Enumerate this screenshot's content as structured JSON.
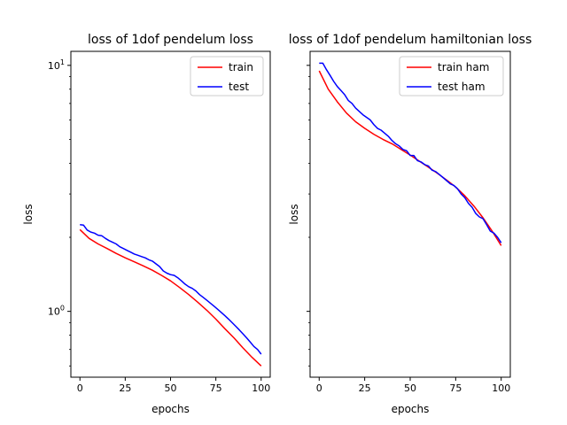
{
  "chart_data": [
    {
      "type": "line",
      "title": "loss of 1dof pendelum loss",
      "xlabel": "epochs",
      "ylabel": "loss",
      "xlim": [
        -5,
        105
      ],
      "ylim": [
        0.54,
        11.4
      ],
      "yscale": "log",
      "xticks": [
        0,
        25,
        50,
        75,
        100
      ],
      "xtick_labels": [
        "0",
        "25",
        "50",
        "75",
        "100"
      ],
      "yticks": [
        1,
        10
      ],
      "ytick_labels": [
        "10^0",
        "10^1"
      ],
      "legend": "top-right",
      "grid": false,
      "series": [
        {
          "name": "train",
          "color": "#ff0000",
          "x": [
            0,
            5,
            10,
            15,
            20,
            25,
            30,
            35,
            40,
            45,
            50,
            55,
            60,
            65,
            70,
            75,
            80,
            85,
            90,
            95,
            100
          ],
          "values": [
            2.15,
            1.98,
            1.88,
            1.8,
            1.72,
            1.65,
            1.59,
            1.53,
            1.47,
            1.4,
            1.33,
            1.25,
            1.17,
            1.09,
            1.01,
            0.93,
            0.85,
            0.78,
            0.71,
            0.65,
            0.6
          ]
        },
        {
          "name": "test",
          "color": "#0000ff",
          "x": [
            0,
            2,
            4,
            6,
            8,
            10,
            12,
            14,
            16,
            18,
            20,
            22,
            24,
            26,
            28,
            30,
            32,
            34,
            36,
            38,
            40,
            42,
            44,
            46,
            48,
            50,
            52,
            54,
            56,
            58,
            60,
            62,
            64,
            66,
            68,
            70,
            72,
            74,
            76,
            78,
            80,
            82,
            84,
            86,
            88,
            90,
            92,
            94,
            96,
            98,
            100
          ],
          "values": [
            2.25,
            2.24,
            2.14,
            2.1,
            2.08,
            2.04,
            2.03,
            1.98,
            1.94,
            1.91,
            1.88,
            1.83,
            1.8,
            1.77,
            1.74,
            1.71,
            1.69,
            1.67,
            1.65,
            1.62,
            1.6,
            1.56,
            1.52,
            1.46,
            1.43,
            1.41,
            1.4,
            1.37,
            1.33,
            1.29,
            1.26,
            1.24,
            1.21,
            1.17,
            1.14,
            1.11,
            1.08,
            1.05,
            1.02,
            0.99,
            0.96,
            0.93,
            0.9,
            0.87,
            0.84,
            0.81,
            0.78,
            0.75,
            0.72,
            0.7,
            0.67
          ]
        }
      ]
    },
    {
      "type": "line",
      "title": "loss of 1dof pendelum hamiltonian loss",
      "xlabel": "epochs",
      "ylabel": "loss",
      "xlim": [
        -5,
        105
      ],
      "ylim": [
        0.54,
        11.4
      ],
      "yscale": "log",
      "xticks": [
        0,
        25,
        50,
        75,
        100
      ],
      "xtick_labels": [
        "0",
        "25",
        "50",
        "75",
        "100"
      ],
      "legend": "top-right",
      "grid": false,
      "series": [
        {
          "name": "train ham",
          "color": "#ff0000",
          "x": [
            0,
            5,
            10,
            15,
            20,
            25,
            30,
            35,
            40,
            45,
            50,
            55,
            60,
            65,
            70,
            75,
            80,
            85,
            90,
            95,
            100
          ],
          "values": [
            9.5,
            8.0,
            7.1,
            6.4,
            5.9,
            5.55,
            5.25,
            5.0,
            4.8,
            4.55,
            4.32,
            4.08,
            3.86,
            3.64,
            3.42,
            3.2,
            2.95,
            2.68,
            2.4,
            2.12,
            1.85
          ]
        },
        {
          "name": "test ham",
          "color": "#0000ff",
          "x": [
            0,
            2,
            4,
            6,
            8,
            10,
            12,
            14,
            16,
            18,
            20,
            22,
            24,
            26,
            28,
            30,
            32,
            34,
            36,
            38,
            40,
            42,
            44,
            46,
            48,
            50,
            52,
            54,
            56,
            58,
            60,
            62,
            64,
            66,
            68,
            70,
            72,
            74,
            76,
            78,
            80,
            82,
            84,
            86,
            88,
            90,
            92,
            94,
            96,
            98,
            100
          ],
          "values": [
            10.2,
            10.2,
            9.6,
            9.1,
            8.6,
            8.2,
            7.9,
            7.6,
            7.2,
            7.0,
            6.7,
            6.5,
            6.3,
            6.15,
            6.0,
            5.75,
            5.55,
            5.45,
            5.3,
            5.15,
            4.95,
            4.8,
            4.7,
            4.55,
            4.5,
            4.3,
            4.3,
            4.1,
            4.05,
            3.95,
            3.9,
            3.75,
            3.7,
            3.6,
            3.5,
            3.4,
            3.3,
            3.25,
            3.15,
            3.0,
            2.9,
            2.75,
            2.65,
            2.5,
            2.42,
            2.38,
            2.25,
            2.12,
            2.08,
            2.0,
            1.9
          ]
        }
      ]
    }
  ]
}
